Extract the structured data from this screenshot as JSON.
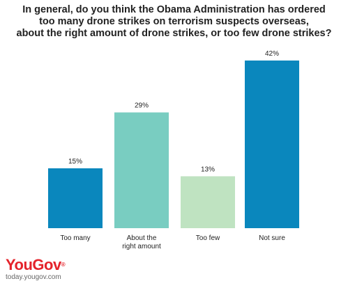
{
  "chart_data": {
    "type": "bar",
    "title_lines": [
      "In general, do you think the Obama Administration has ordered",
      "too many drone strikes on terrorism suspects overseas,",
      "about the right amount of drone strikes, or too few drone strikes?"
    ],
    "categories": [
      [
        "Too many"
      ],
      [
        "About the",
        "right amount"
      ],
      [
        "Too few"
      ],
      [
        "Not sure"
      ]
    ],
    "values": [
      15,
      29,
      13,
      42
    ],
    "value_labels": [
      "15%",
      "29%",
      "13%",
      "42%"
    ],
    "colors": [
      "#0a87bd",
      "#79cdc1",
      "#bfe3c1",
      "#0a87bd"
    ],
    "ylim": [
      0,
      42
    ],
    "grid": false,
    "legend": "none"
  },
  "branding": {
    "logo": "YouGov",
    "url": "today.yougov.com"
  }
}
